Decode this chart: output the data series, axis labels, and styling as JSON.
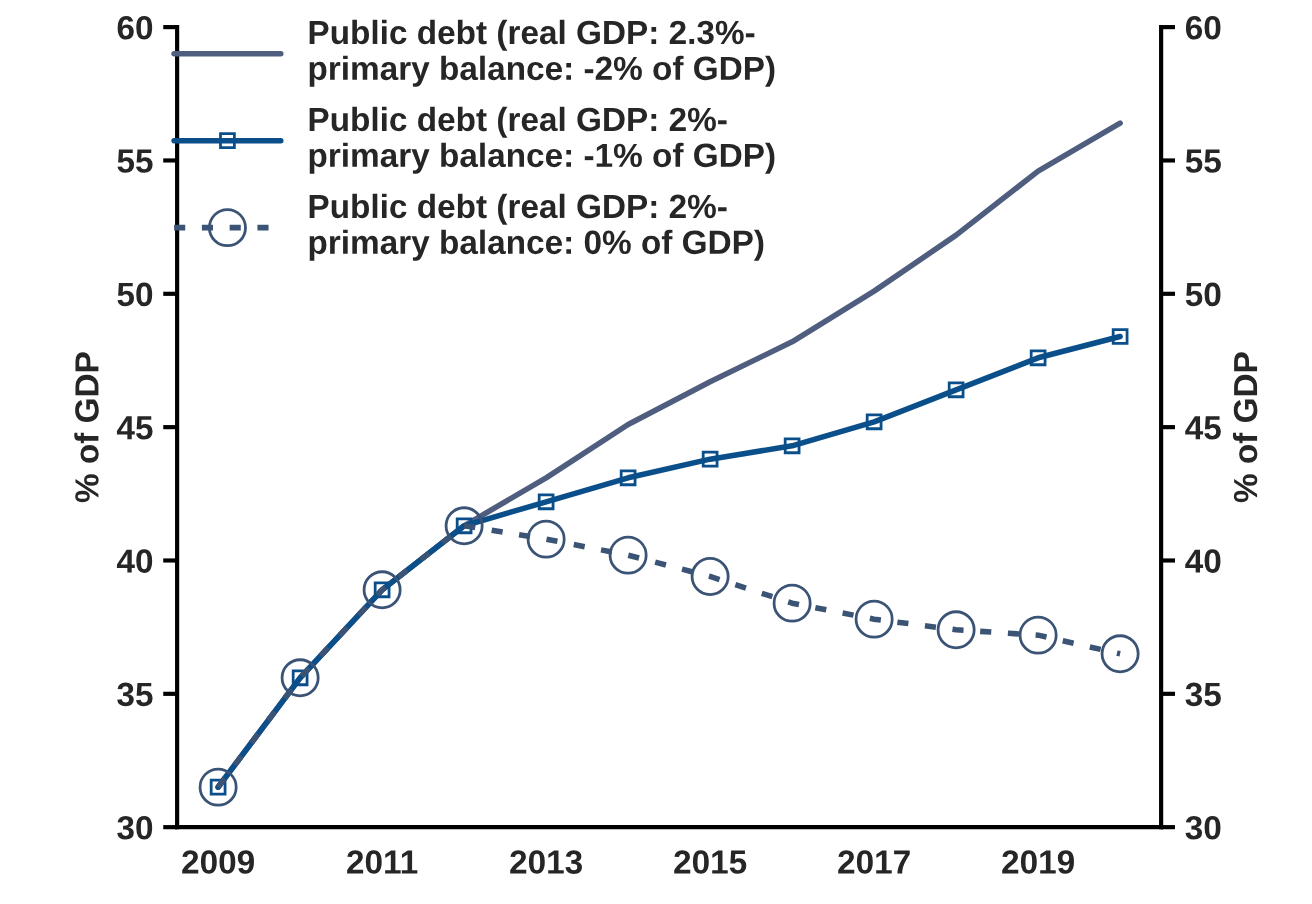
{
  "chart_data": {
    "type": "line",
    "ylabel": "% of GDP",
    "y2label": "% of GDP",
    "categories": [
      "2009",
      null,
      "2011",
      null,
      "2013",
      null,
      "2015",
      null,
      "2017",
      null,
      "2019",
      null
    ],
    "series": [
      {
        "name": "Public debt (real GDP: 2.3%-\nprimary balance: -2% of GDP)",
        "color": "#4f5d7e",
        "marker": "none",
        "line_style": "solid",
        "values": [
          31.5,
          35.6,
          38.9,
          41.3,
          43.1,
          45.1,
          46.7,
          48.2,
          50.1,
          52.2,
          54.6,
          56.4
        ]
      },
      {
        "name": "Public debt (real GDP: 2%-\nprimary balance: -1% of GDP)",
        "color": "#0a4f8a",
        "marker": "square",
        "line_style": "solid",
        "values": [
          31.5,
          35.6,
          38.9,
          41.3,
          42.2,
          43.1,
          43.8,
          44.3,
          45.2,
          46.4,
          47.6,
          48.4
        ]
      },
      {
        "name": "Public debt (real GDP: 2%-\nprimary balance: 0% of GDP)",
        "color": "#3b5375",
        "marker": "circle",
        "line_style": "dashed",
        "values": [
          31.5,
          35.6,
          38.9,
          41.3,
          40.8,
          40.2,
          39.4,
          38.4,
          37.8,
          37.4,
          37.2,
          36.5
        ]
      }
    ],
    "ylim": [
      30,
      60
    ],
    "yticks": [
      30,
      35,
      40,
      45,
      50,
      55,
      60
    ],
    "y2lim": [
      30,
      60
    ],
    "y2ticks": [
      30,
      35,
      40,
      45,
      50,
      55,
      60
    ],
    "legend": "top left",
    "grid": false
  }
}
